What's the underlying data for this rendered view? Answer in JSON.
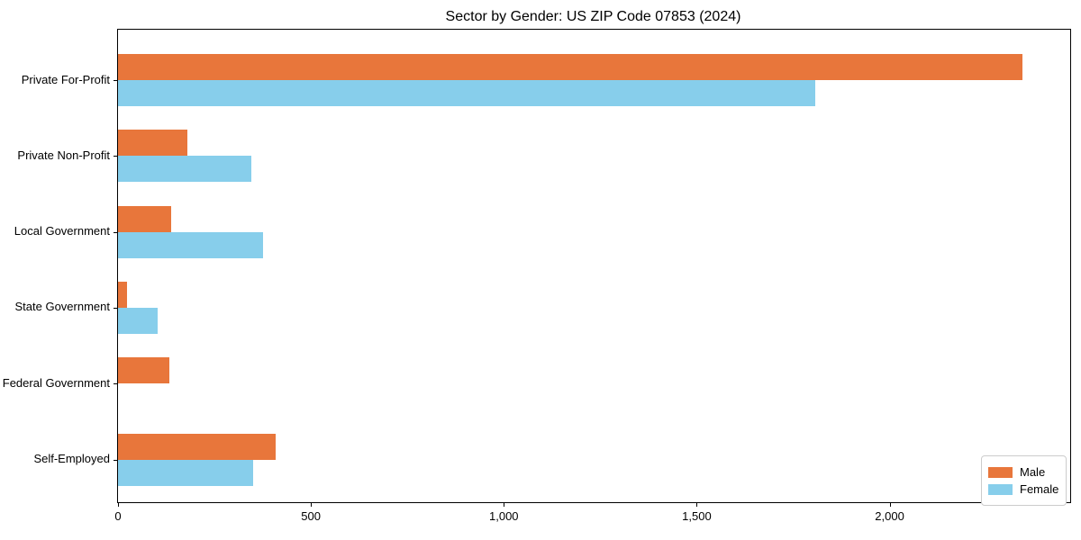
{
  "title": "Sector by Gender: US ZIP Code 07853 (2024)",
  "chart_data": {
    "type": "bar",
    "orientation": "horizontal",
    "title": "Sector by Gender: US ZIP Code 07853 (2024)",
    "categories": [
      "Private For-Profit",
      "Private Non-Profit",
      "Local Government",
      "State Government",
      "Federal Government",
      "Self-Employed"
    ],
    "series": [
      {
        "name": "Male",
        "color": "#e8763b",
        "values": [
          2345,
          179,
          138,
          23,
          132,
          408
        ]
      },
      {
        "name": "Female",
        "color": "#87ceeb",
        "values": [
          1808,
          345,
          376,
          103,
          0,
          350
        ]
      }
    ],
    "xlabel": "",
    "ylabel": "",
    "xlim": [
      0,
      2468
    ],
    "x_ticks": [
      0,
      500,
      1000,
      1500,
      2000
    ],
    "x_tick_labels": [
      "0",
      "500",
      "1,000",
      "1,500",
      "2,000"
    ],
    "grid": false,
    "legend": {
      "position": "lower right",
      "entries": [
        "Male",
        "Female"
      ]
    }
  },
  "colors": {
    "male": "#e8763b",
    "female": "#87ceeb",
    "axis": "#000000",
    "background": "#ffffff",
    "legend_border": "#cccccc"
  }
}
